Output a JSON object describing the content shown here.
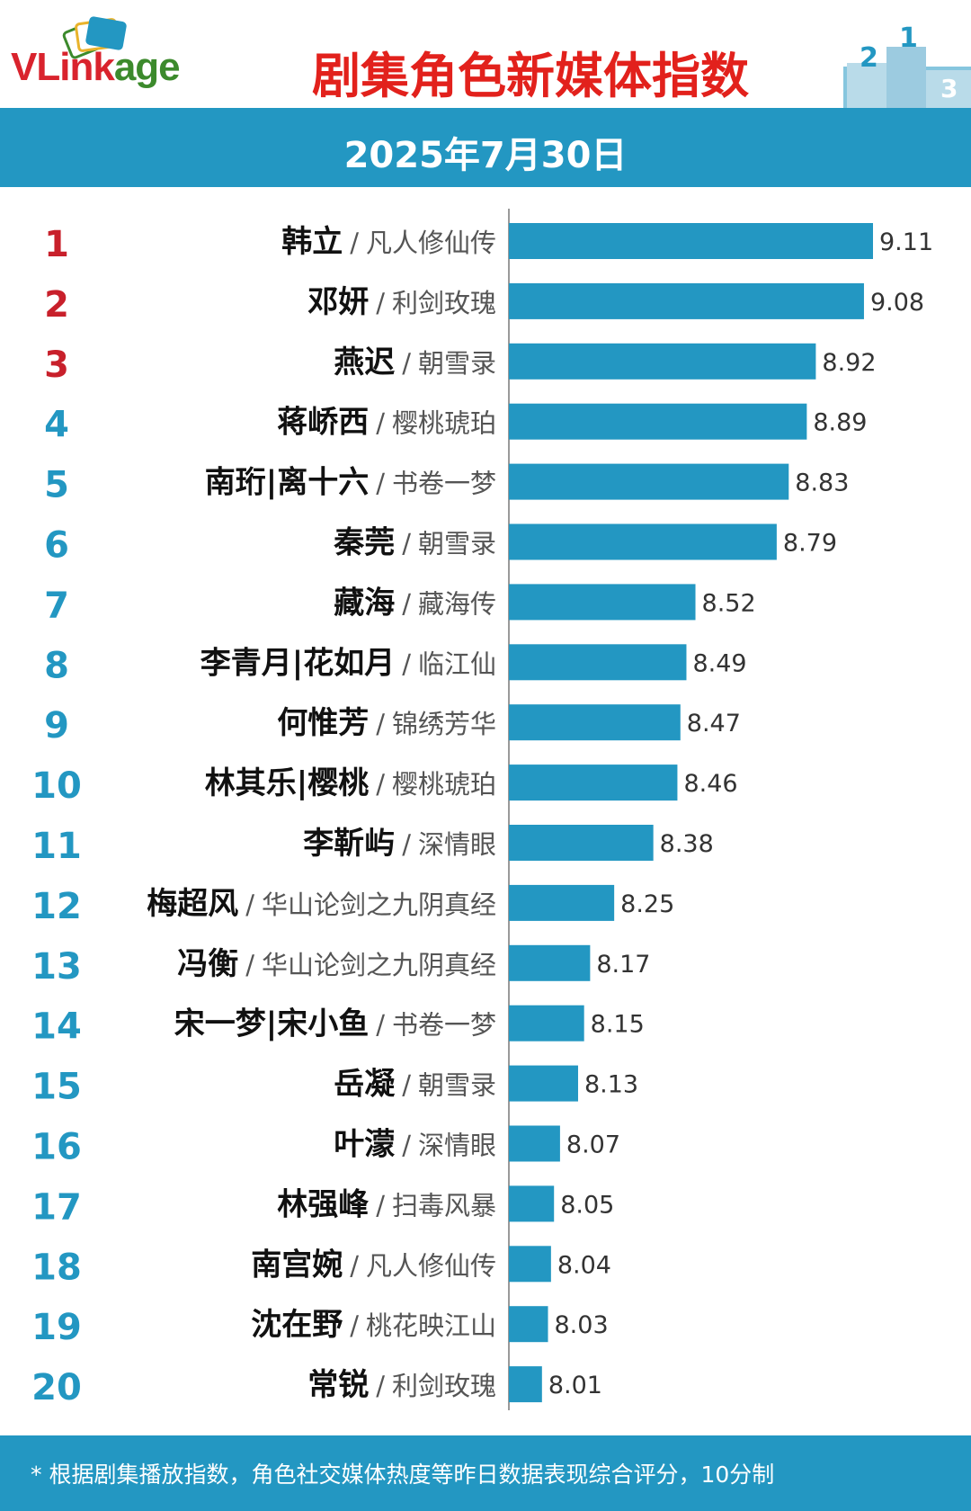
{
  "header": {
    "logo_text_v": "V",
    "logo_text_link": "Link",
    "logo_text_age": "age",
    "title": "剧集角色新媒体指数",
    "podium_labels": [
      "2",
      "1",
      "3"
    ]
  },
  "date": "2025年7月30日",
  "footer": {
    "note": "* 根据剧集播放指数，角色社交媒体热度等昨日数据表现综合评分，10分制"
  },
  "colors": {
    "bar": "#2397c2",
    "rank_top3": "#c8202b",
    "rank_other": "#2397c2",
    "title_red": "#e2211c",
    "logo_red": "#d9232d",
    "logo_green": "#3c8a2c"
  },
  "chart_data": {
    "type": "bar",
    "orientation": "horizontal",
    "categories": [
      "韩立",
      "邓妍",
      "燕迟",
      "蒋峤西",
      "南珩|离十六",
      "秦莞",
      "藏海",
      "李青月|花如月",
      "何惟芳",
      "林其乐|樱桃",
      "李靳屿",
      "梅超风",
      "冯衡",
      "宋一梦|宋小鱼",
      "岳凝",
      "叶濛",
      "林强峰",
      "南宫婉",
      "沈在野",
      "常锐"
    ],
    "dramas": [
      "凡人修仙传",
      "利剑玫瑰",
      "朝雪录",
      "樱桃琥珀",
      "书卷一梦",
      "朝雪录",
      "藏海传",
      "临江仙",
      "锦绣芳华",
      "樱桃琥珀",
      "深情眼",
      "华山论剑之九阴真经",
      "华山论剑之九阴真经",
      "书卷一梦",
      "朝雪录",
      "深情眼",
      "扫毒风暴",
      "凡人修仙传",
      "桃花映江山",
      "利剑玫瑰"
    ],
    "ranks": [
      "1",
      "2",
      "3",
      "4",
      "5",
      "6",
      "7",
      "8",
      "9",
      "10",
      "11",
      "12",
      "13",
      "14",
      "15",
      "16",
      "17",
      "18",
      "19",
      "20"
    ],
    "values": [
      9.11,
      9.08,
      8.92,
      8.89,
      8.83,
      8.79,
      8.52,
      8.49,
      8.47,
      8.46,
      8.38,
      8.25,
      8.17,
      8.15,
      8.13,
      8.07,
      8.05,
      8.04,
      8.03,
      8.01
    ],
    "value_labels": [
      "9.11",
      "9.08",
      "8.92",
      "8.89",
      "8.83",
      "8.79",
      "8.52",
      "8.49",
      "8.47",
      "8.46",
      "8.38",
      "8.25",
      "8.17",
      "8.15",
      "8.13",
      "8.07",
      "8.05",
      "8.04",
      "8.03",
      "8.01"
    ],
    "separator": "/",
    "xlim": [
      7.9,
      9.11
    ],
    "grid": false,
    "legend": "none"
  }
}
